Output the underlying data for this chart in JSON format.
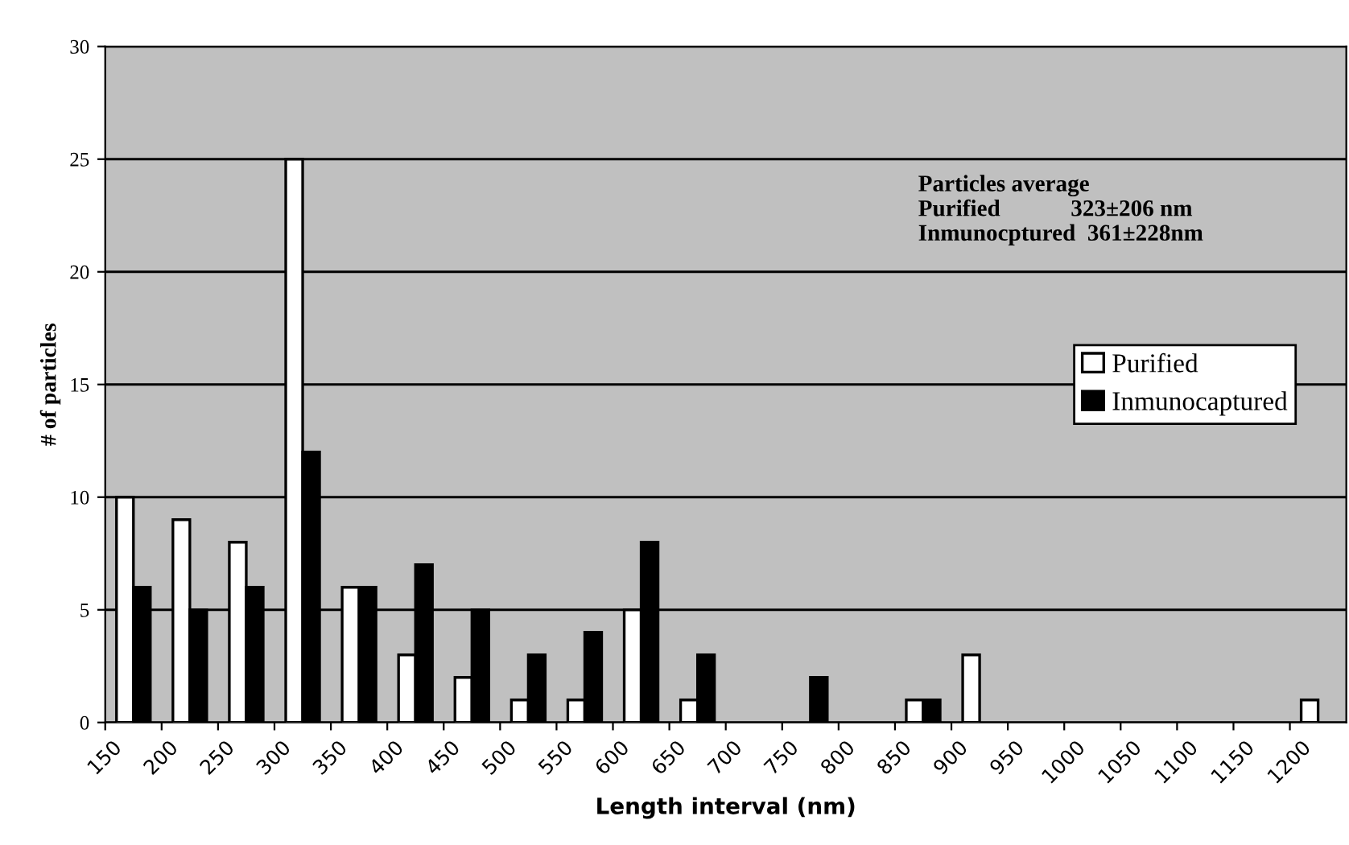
{
  "chart_data": {
    "type": "histogram",
    "xlabel": "Length interval (nm)",
    "ylabel": "# of particles",
    "bins": [
      150,
      200,
      250,
      300,
      350,
      400,
      450,
      500,
      550,
      600,
      650,
      700,
      750,
      800,
      850,
      900,
      950,
      1000,
      1050,
      1100,
      1150,
      1200,
      1250
    ],
    "series": [
      {
        "name": "Purified",
        "color": "#ffffff",
        "values": [
          10,
          9,
          8,
          25,
          6,
          3,
          2,
          1,
          1,
          5,
          1,
          0,
          0,
          0,
          1,
          3,
          0,
          0,
          0,
          0,
          0,
          1
        ]
      },
      {
        "name": "Inmunocaptured",
        "color": "#000000",
        "values": [
          6,
          5,
          6,
          12,
          6,
          7,
          5,
          3,
          4,
          8,
          3,
          0,
          2,
          0,
          1,
          0,
          0,
          0,
          0,
          0,
          0,
          0
        ]
      }
    ],
    "xlim": [
      150,
      1250
    ],
    "xticks": [
      150,
      200,
      250,
      300,
      350,
      400,
      450,
      500,
      550,
      600,
      650,
      700,
      750,
      800,
      850,
      900,
      950,
      1000,
      1050,
      1100,
      1150,
      1200
    ],
    "ylim": [
      0,
      30
    ],
    "yticks": [
      0,
      5,
      10,
      15,
      20,
      25,
      30
    ],
    "grid": "y",
    "legend": "right",
    "annotations": [
      "Particles average\nPurified            323±206 nm\nInmunocptured  361±228nm"
    ]
  }
}
